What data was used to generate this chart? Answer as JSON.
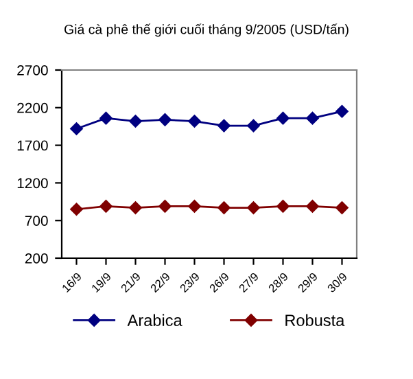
{
  "chart_data": {
    "type": "line",
    "title": "Giá cà phê thế giới cuối tháng 9/2005 (USD/tấn)",
    "categories": [
      "16/9",
      "19/9",
      "21/9",
      "22/9",
      "23/9",
      "26/9",
      "27/9",
      "28/9",
      "29/9",
      "30/9"
    ],
    "series": [
      {
        "name": "Arabica",
        "color": "#000080",
        "values": [
          1920,
          2060,
          2020,
          2040,
          2020,
          1960,
          1960,
          2060,
          2060,
          2150
        ]
      },
      {
        "name": "Robusta",
        "color": "#800000",
        "values": [
          850,
          890,
          870,
          890,
          890,
          870,
          870,
          890,
          890,
          870
        ]
      }
    ],
    "ylim": [
      200,
      2700
    ],
    "yticks": [
      200,
      700,
      1200,
      1700,
      2200,
      2700
    ],
    "grid": false,
    "legend": "bottom",
    "marker": "diamond",
    "line_style": "solid"
  }
}
